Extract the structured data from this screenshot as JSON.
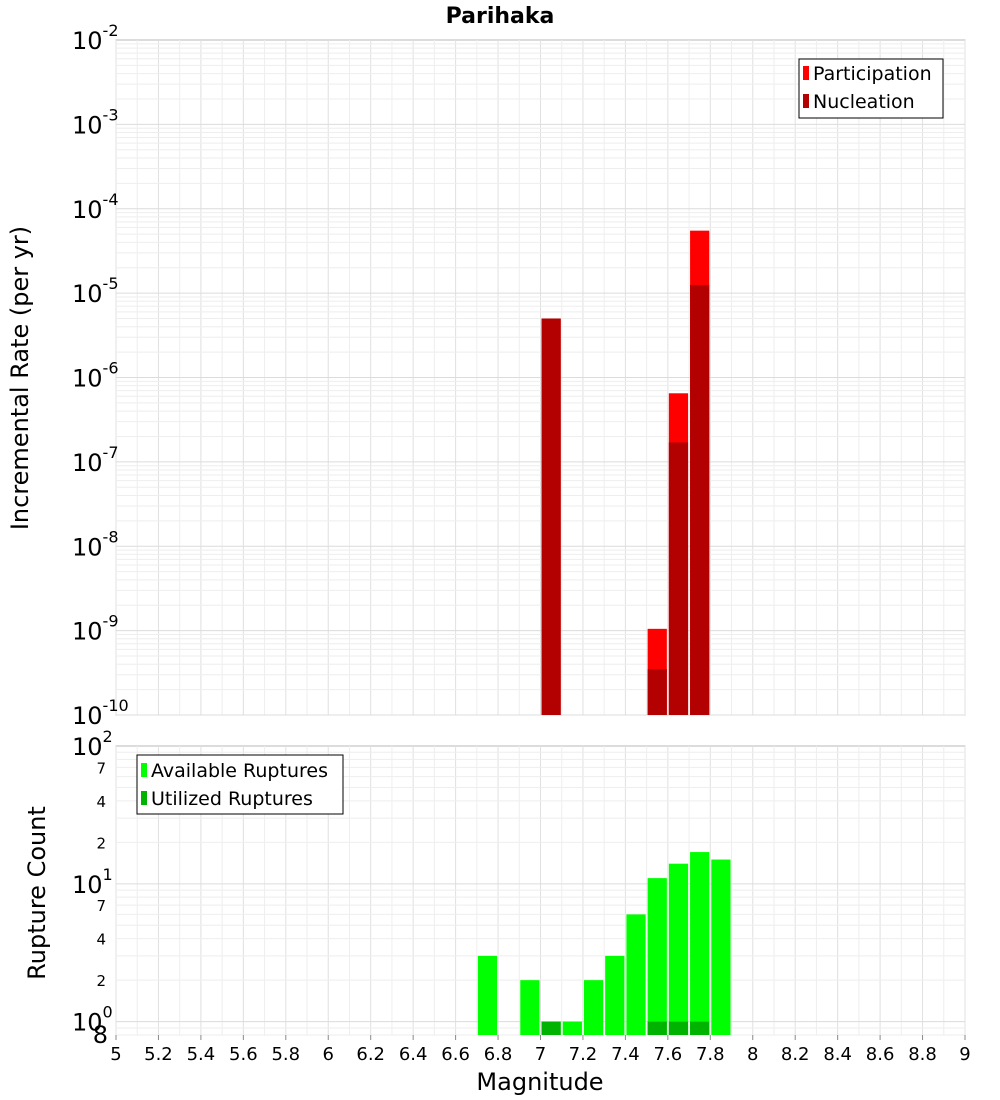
{
  "chart_data": [
    {
      "type": "bar",
      "title": "Parihaka",
      "ylabel": "Incremental Rate (per yr)",
      "xlabel": "",
      "y_scale": "log",
      "ylim": [
        1e-10,
        0.01
      ],
      "xlim": [
        5,
        9
      ],
      "bar_width": 0.1,
      "y_ticks": [
        {
          "base": "10",
          "exp": "-2",
          "value": 0.01
        },
        {
          "base": "10",
          "exp": "-3",
          "value": 0.001
        },
        {
          "base": "10",
          "exp": "-4",
          "value": 0.0001
        },
        {
          "base": "10",
          "exp": "-5",
          "value": 1e-05
        },
        {
          "base": "10",
          "exp": "-6",
          "value": 1e-06
        },
        {
          "base": "10",
          "exp": "-7",
          "value": 1e-07
        },
        {
          "base": "10",
          "exp": "-8",
          "value": 1e-08
        },
        {
          "base": "10",
          "exp": "-9",
          "value": 1e-09
        },
        {
          "base": "10",
          "exp": "-10",
          "value": 1e-10
        }
      ],
      "series": [
        {
          "name": "Participation",
          "color": "#ff0000",
          "points": [
            {
              "x": 7.05,
              "y": 5e-06
            },
            {
              "x": 7.55,
              "y": 1.05e-09
            },
            {
              "x": 7.65,
              "y": 6.5e-07
            },
            {
              "x": 7.75,
              "y": 5.5e-05
            }
          ]
        },
        {
          "name": "Nucleation",
          "color": "#b30000",
          "points": [
            {
              "x": 7.05,
              "y": 5e-06
            },
            {
              "x": 7.55,
              "y": 3.5e-10
            },
            {
              "x": 7.65,
              "y": 1.7e-07
            },
            {
              "x": 7.75,
              "y": 1.25e-05
            }
          ]
        }
      ],
      "legend": "top-right",
      "grid": true
    },
    {
      "type": "bar",
      "title": "",
      "ylabel": "Rupture Count",
      "xlabel": "Magnitude",
      "y_scale": "log",
      "ylim": [
        0.8,
        100
      ],
      "xlim": [
        5,
        9
      ],
      "bar_width": 0.1,
      "x_ticks": [
        "5",
        "5.2",
        "5.4",
        "5.6",
        "5.8",
        "6",
        "6.2",
        "6.4",
        "6.6",
        "6.8",
        "7",
        "7.2",
        "7.4",
        "7.6",
        "7.8",
        "8",
        "8.2",
        "8.4",
        "8.6",
        "8.8",
        "9"
      ],
      "y_ticks": [
        {
          "base": "10",
          "exp": "2",
          "value": 100
        },
        {
          "base": "10",
          "exp": "1",
          "value": 10
        },
        {
          "base": "10",
          "exp": "0",
          "value": 1
        }
      ],
      "y_minor_ticks": [
        {
          "label": "7",
          "value": 70
        },
        {
          "label": "4",
          "value": 40
        },
        {
          "label": "2",
          "value": 20
        },
        {
          "label": "7",
          "value": 7
        },
        {
          "label": "4",
          "value": 4
        },
        {
          "label": "2",
          "value": 2
        },
        {
          "label": "8",
          "value": 0.8
        }
      ],
      "series": [
        {
          "name": "Available Ruptures",
          "color": "#00ff00",
          "points": [
            {
              "x": 6.75,
              "y": 3
            },
            {
              "x": 6.95,
              "y": 2
            },
            {
              "x": 7.05,
              "y": 1
            },
            {
              "x": 7.15,
              "y": 1
            },
            {
              "x": 7.25,
              "y": 2
            },
            {
              "x": 7.35,
              "y": 3
            },
            {
              "x": 7.45,
              "y": 6
            },
            {
              "x": 7.55,
              "y": 11
            },
            {
              "x": 7.65,
              "y": 14
            },
            {
              "x": 7.75,
              "y": 17
            },
            {
              "x": 7.85,
              "y": 15
            }
          ]
        },
        {
          "name": "Utilized Ruptures",
          "color": "#00b300",
          "points": [
            {
              "x": 7.05,
              "y": 1
            },
            {
              "x": 7.55,
              "y": 1
            },
            {
              "x": 7.65,
              "y": 1
            },
            {
              "x": 7.75,
              "y": 1
            }
          ]
        }
      ],
      "legend": "top-left",
      "grid": true
    }
  ]
}
